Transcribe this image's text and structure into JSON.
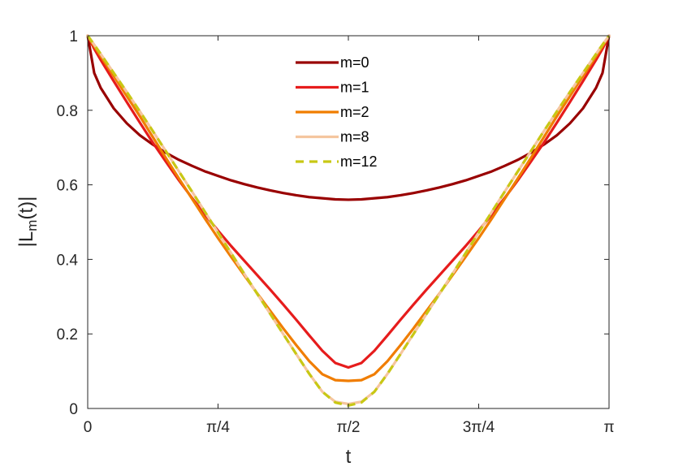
{
  "chart_data": {
    "type": "line",
    "xlabel": "t",
    "ylabel_main": "|L",
    "ylabel_sub": "m",
    "ylabel_tail": "(t)|",
    "xlim": [
      0,
      3.14159265
    ],
    "ylim": [
      0,
      1
    ],
    "grid": false,
    "legend_position": "top-center",
    "x_ticks": [
      {
        "value": 0,
        "label": "0"
      },
      {
        "value": 0.785398,
        "label": "π/4"
      },
      {
        "value": 1.570796,
        "label": "π/2"
      },
      {
        "value": 2.356194,
        "label": "3π/4"
      },
      {
        "value": 3.141593,
        "label": "π"
      }
    ],
    "y_ticks": [
      {
        "value": 0,
        "label": "0"
      },
      {
        "value": 0.2,
        "label": "0.2"
      },
      {
        "value": 0.4,
        "label": "0.4"
      },
      {
        "value": 0.6,
        "label": "0.6"
      },
      {
        "value": 0.8,
        "label": "0.8"
      },
      {
        "value": 1,
        "label": "1"
      }
    ],
    "x": [
      0,
      0.0393,
      0.0785,
      0.1571,
      0.2356,
      0.3142,
      0.3927,
      0.4712,
      0.5498,
      0.6283,
      0.7069,
      0.7854,
      0.8639,
      0.9425,
      1.021,
      1.0996,
      1.1781,
      1.2566,
      1.3352,
      1.4137,
      1.4923,
      1.5708,
      1.6493,
      1.7279,
      1.8064,
      1.885,
      1.9635,
      2.042,
      2.1206,
      2.1991,
      2.2777,
      2.3562,
      2.4347,
      2.5133,
      2.5918,
      2.6704,
      2.7489,
      2.8274,
      2.906,
      2.9845,
      3.0631,
      3.1023,
      3.1416
    ],
    "series": [
      {
        "name": "m=0",
        "color": "#990000",
        "dashed": false,
        "values": [
          1.0,
          0.9,
          0.86,
          0.805,
          0.765,
          0.733,
          0.708,
          0.686,
          0.667,
          0.651,
          0.636,
          0.624,
          0.612,
          0.602,
          0.593,
          0.585,
          0.578,
          0.572,
          0.567,
          0.564,
          0.561,
          0.56,
          0.561,
          0.564,
          0.567,
          0.572,
          0.578,
          0.585,
          0.593,
          0.602,
          0.612,
          0.624,
          0.636,
          0.651,
          0.667,
          0.686,
          0.708,
          0.733,
          0.765,
          0.805,
          0.86,
          0.9,
          1.0
        ]
      },
      {
        "name": "m=1",
        "color": "#e61c1c",
        "dashed": false,
        "values": [
          1.0,
          0.965,
          0.935,
          0.878,
          0.822,
          0.767,
          0.713,
          0.662,
          0.612,
          0.565,
          0.52,
          0.477,
          0.436,
          0.397,
          0.358,
          0.319,
          0.279,
          0.238,
          0.196,
          0.155,
          0.122,
          0.11,
          0.122,
          0.155,
          0.196,
          0.238,
          0.279,
          0.319,
          0.358,
          0.397,
          0.436,
          0.477,
          0.52,
          0.565,
          0.612,
          0.662,
          0.713,
          0.767,
          0.822,
          0.878,
          0.935,
          0.965,
          1.0
        ]
      },
      {
        "name": "m=2",
        "color": "#f07d00",
        "dashed": false,
        "values": [
          1.0,
          0.972,
          0.945,
          0.892,
          0.838,
          0.784,
          0.728,
          0.672,
          0.617,
          0.563,
          0.509,
          0.457,
          0.407,
          0.358,
          0.309,
          0.262,
          0.215,
          0.17,
          0.127,
          0.092,
          0.076,
          0.074,
          0.076,
          0.092,
          0.127,
          0.17,
          0.215,
          0.262,
          0.309,
          0.358,
          0.407,
          0.457,
          0.509,
          0.563,
          0.617,
          0.672,
          0.728,
          0.784,
          0.838,
          0.892,
          0.945,
          0.972,
          1.0
        ]
      },
      {
        "name": "m=8",
        "color": "#f5c69f",
        "dashed": false,
        "values": [
          1.0,
          0.976,
          0.951,
          0.9,
          0.849,
          0.797,
          0.744,
          0.69,
          0.636,
          0.582,
          0.527,
          0.472,
          0.417,
          0.362,
          0.308,
          0.254,
          0.2,
          0.146,
          0.093,
          0.045,
          0.018,
          0.012,
          0.018,
          0.045,
          0.093,
          0.146,
          0.2,
          0.254,
          0.308,
          0.362,
          0.417,
          0.472,
          0.527,
          0.582,
          0.636,
          0.69,
          0.744,
          0.797,
          0.849,
          0.9,
          0.951,
          0.976,
          1.0
        ]
      },
      {
        "name": "m=12",
        "color": "#c8c814",
        "dashed": true,
        "values": [
          1.0,
          0.976,
          0.951,
          0.9,
          0.849,
          0.797,
          0.744,
          0.69,
          0.636,
          0.582,
          0.527,
          0.472,
          0.417,
          0.362,
          0.308,
          0.254,
          0.2,
          0.146,
          0.093,
          0.045,
          0.016,
          0.008,
          0.016,
          0.045,
          0.093,
          0.146,
          0.2,
          0.254,
          0.308,
          0.362,
          0.417,
          0.472,
          0.527,
          0.582,
          0.636,
          0.69,
          0.744,
          0.797,
          0.849,
          0.9,
          0.951,
          0.976,
          1.0
        ]
      }
    ]
  }
}
